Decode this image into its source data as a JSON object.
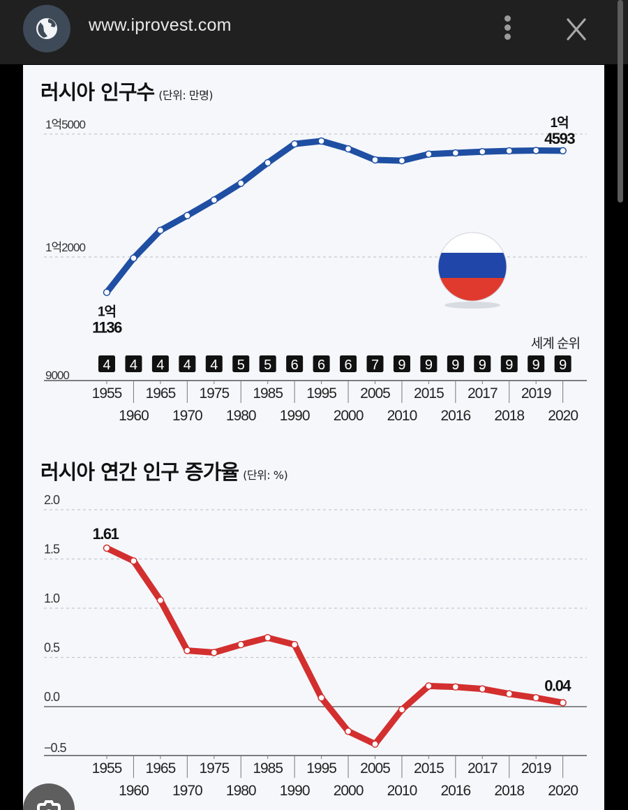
{
  "browser": {
    "url": "www.iprovest.com",
    "site_icon": "globe-icon",
    "menu_icon": "more-vertical-icon",
    "close_icon": "close-icon"
  },
  "chart1": {
    "title": "러시아 인구수",
    "unit": "(단위: 만명)",
    "y_labels": [
      "1억5000",
      "1억2000",
      "9000"
    ],
    "start_label_line1": "1억",
    "start_label_line2": "1136",
    "end_label_line1": "1억",
    "end_label_line2": "4593",
    "rank_title": "세계 순위"
  },
  "chart2": {
    "title": "러시아 연간 인구 증가율",
    "unit": "(단위: %)",
    "y_labels": [
      "2.0",
      "1.5",
      "1.0",
      "0.5",
      "0.0",
      "−0.5"
    ],
    "start_label": "1.61",
    "end_label": "0.04"
  },
  "x_labels_top": [
    "1955",
    "1965",
    "1975",
    "1985",
    "1995",
    "2005",
    "2015",
    "2017",
    "2019"
  ],
  "x_labels_bottom": [
    "1960",
    "1970",
    "1980",
    "1990",
    "2000",
    "2010",
    "2016",
    "2018",
    "2020"
  ],
  "chart_data": [
    {
      "type": "line",
      "title": "러시아 인구수 (단위: 만명)",
      "xlabel": "",
      "ylabel": "만명",
      "ylim": [
        9000,
        15000
      ],
      "yticks": [
        "9000",
        "1억2000",
        "1억5000"
      ],
      "grid": true,
      "color": "#1f4fa3",
      "x": [
        "1955",
        "1960",
        "1965",
        "1970",
        "1975",
        "1980",
        "1985",
        "1990",
        "1995",
        "2000",
        "2005",
        "2010",
        "2015",
        "2016",
        "2017",
        "2018",
        "2019",
        "2020"
      ],
      "values": [
        11136,
        11970,
        12650,
        13010,
        13390,
        13800,
        14300,
        14760,
        14830,
        14640,
        14370,
        14350,
        14510,
        14540,
        14570,
        14590,
        14600,
        14593
      ],
      "annotations": [
        {
          "x": "1955",
          "text": "1억 1136"
        },
        {
          "x": "2020",
          "text": "1억 4593"
        }
      ],
      "world_rank": {
        "label": "세계 순위",
        "values": [
          4,
          4,
          4,
          4,
          4,
          5,
          5,
          6,
          6,
          6,
          7,
          9,
          9,
          9,
          9,
          9,
          9,
          9
        ]
      }
    },
    {
      "type": "line",
      "title": "러시아 연간 인구 증가율 (단위: %)",
      "xlabel": "",
      "ylabel": "%",
      "ylim": [
        -0.5,
        2.0
      ],
      "yticks": [
        "-0.5",
        "0.0",
        "0.5",
        "1.0",
        "1.5",
        "2.0"
      ],
      "grid": true,
      "color": "#d32f2f",
      "x": [
        "1955",
        "1960",
        "1965",
        "1970",
        "1975",
        "1980",
        "1985",
        "1990",
        "1995",
        "2000",
        "2005",
        "2010",
        "2015",
        "2016",
        "2017",
        "2018",
        "2019",
        "2020"
      ],
      "values": [
        1.61,
        1.48,
        1.08,
        0.57,
        0.55,
        0.63,
        0.7,
        0.63,
        0.09,
        -0.25,
        -0.38,
        -0.03,
        0.21,
        0.2,
        0.18,
        0.13,
        0.09,
        0.04
      ],
      "annotations": [
        {
          "x": "1955",
          "text": "1.61"
        },
        {
          "x": "2020",
          "text": "0.04"
        }
      ]
    }
  ]
}
